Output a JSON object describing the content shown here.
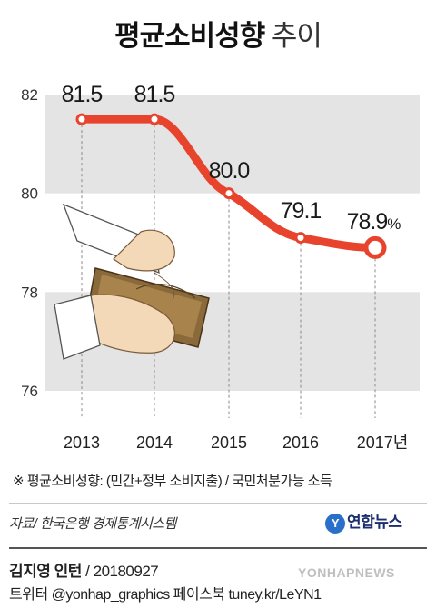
{
  "header": {
    "title_bold": "평균소비성향",
    "title_light": "추이"
  },
  "chart_data": {
    "type": "line",
    "x": [
      "2013",
      "2014",
      "2015",
      "2016",
      "2017"
    ],
    "x_tick_labels": [
      "2013",
      "2014",
      "2015",
      "2016",
      "2017년"
    ],
    "values": [
      81.5,
      81.5,
      80.0,
      79.1,
      78.9
    ],
    "value_labels": [
      "81.5",
      "81.5",
      "80.0",
      "79.1",
      "78.9"
    ],
    "last_value_unit": "%",
    "y_ticks": [
      76,
      78,
      80,
      82
    ],
    "ylim": [
      76,
      82
    ],
    "grid": true,
    "line_color": "#e8442d",
    "band_color": "#e4e4e4"
  },
  "footnote": "※ 평균소비성향: (민간+정부 소비지출) / 국민처분가능 소득",
  "source": "자료/ 한국은행 경제통계시스템",
  "brand": {
    "logo_glyph": "Y",
    "name": "연합뉴스"
  },
  "credit": {
    "author": "김지영 인턴",
    "separator": " / ",
    "date": "20180927"
  },
  "watermark": "YONHAPNEWS",
  "social": "트위터 @yonhap_graphics  페이스북 tuney.kr/LeYN1"
}
